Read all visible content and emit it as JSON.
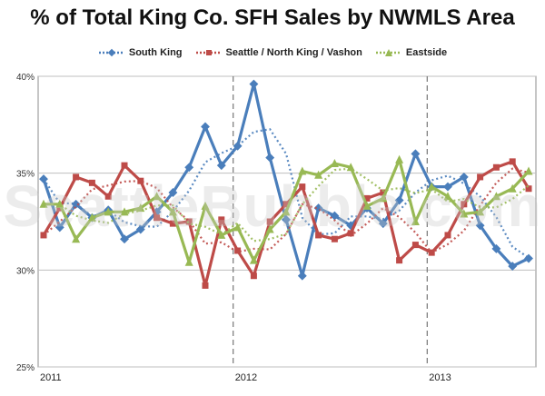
{
  "chart_data": {
    "type": "line",
    "title": "% of Total King Co. SFH Sales by NWMLS Area",
    "ylim": [
      25,
      40
    ],
    "yticks": [
      "25%",
      "30%",
      "35%",
      "40%"
    ],
    "year_labels": [
      "2011",
      "2012",
      "2013"
    ],
    "watermark": "SeattleBubble.com",
    "grid": true,
    "legend_position": "top",
    "series": [
      {
        "name": "South King",
        "color": "#4a7ebb",
        "values": [
          34.7,
          32.2,
          33.4,
          32.7,
          33.1,
          31.6,
          32.1,
          33.0,
          34.0,
          35.3,
          37.4,
          35.4,
          36.4,
          39.6,
          35.8,
          32.6,
          29.7,
          33.2,
          32.8,
          32.3,
          33.2,
          32.4,
          33.6,
          36.0,
          34.3,
          34.3,
          34.8,
          32.3,
          31.1,
          30.2,
          30.6
        ]
      },
      {
        "name": "Seattle / North King / Vashon",
        "color": "#be4b48",
        "values": [
          31.8,
          33.2,
          34.8,
          34.5,
          33.8,
          35.4,
          34.6,
          32.7,
          32.4,
          32.5,
          29.2,
          32.6,
          31.0,
          29.7,
          32.5,
          33.4,
          34.3,
          31.8,
          31.6,
          31.9,
          33.7,
          34.0,
          30.5,
          31.3,
          30.9,
          31.8,
          33.4,
          34.8,
          35.3,
          35.6,
          34.2
        ]
      },
      {
        "name": "Eastside",
        "color": "#98b954",
        "values": [
          33.4,
          33.4,
          31.6,
          32.7,
          33.0,
          33.0,
          33.2,
          33.8,
          33.0,
          30.4,
          33.3,
          31.8,
          32.2,
          30.5,
          32.1,
          33.0,
          35.1,
          34.9,
          35.5,
          35.3,
          33.3,
          33.7,
          35.7,
          32.5,
          34.3,
          33.8,
          32.9,
          33.0,
          33.8,
          34.2,
          35.1
        ]
      }
    ]
  }
}
